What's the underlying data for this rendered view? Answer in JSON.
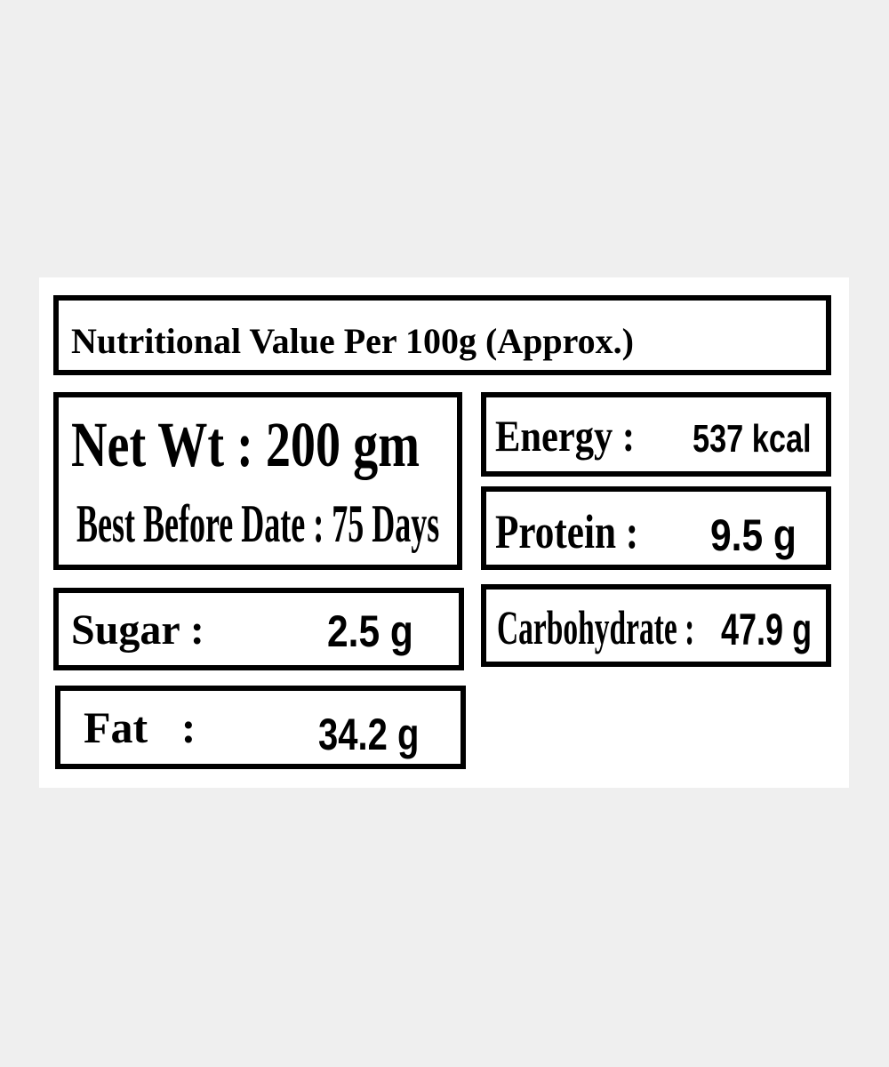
{
  "title": "Nutritional Value Per 100g  (Approx.)",
  "net_wt": {
    "label": "Net Wt : 200 gm",
    "best_before": "Best Before Date : 75 Days"
  },
  "energy": {
    "label": "Energy :",
    "value": "537 kcal"
  },
  "protein": {
    "label": "Protein  :",
    "value": "9.5 g"
  },
  "sugar": {
    "label": "Sugar  :",
    "value": "2.5 g"
  },
  "carbohydrate": {
    "label": "Carbohydrate :",
    "value": "47.9 g"
  },
  "fat": {
    "label": "Fat   :",
    "value": "34.2 g"
  }
}
